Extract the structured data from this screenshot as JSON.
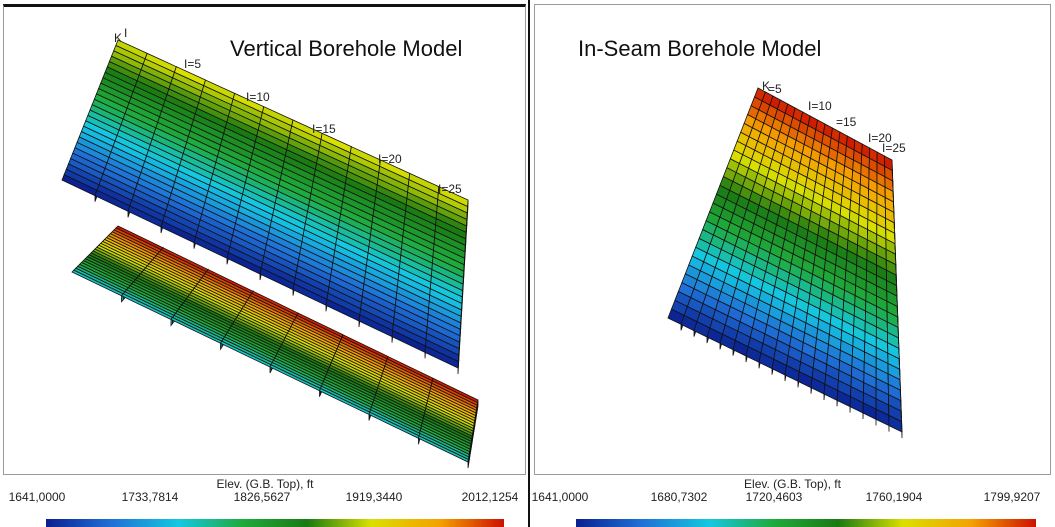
{
  "chart_data": [
    {
      "type": "heatmap",
      "title": "Vertical Borehole Model",
      "legend": {
        "title": "Elev. (G.B. Top), ft",
        "ticks": [
          "1641,0000",
          "1733,7814",
          "1826,5627",
          "1919,3440",
          "2012,1254"
        ],
        "min": 1641.0,
        "max": 2012.1254
      },
      "grid_labels": [
        "K",
        "I",
        "I=5",
        "I=10",
        "I=15",
        "I=20",
        "I=25"
      ],
      "colors": [
        "#0a1f8f",
        "#1f6fd6",
        "#14c8e0",
        "#1faa3c",
        "#1a7a12",
        "#d9e000",
        "#f5a000",
        "#cc1100"
      ]
    },
    {
      "type": "heatmap",
      "title": "In-Seam Borehole Model",
      "legend": {
        "title": "Elev. (G.B. Top), ft",
        "ticks": [
          "1641,0000",
          "1680,7302",
          "1720,4603",
          "1760,1904",
          "1799,9207"
        ],
        "min": 1641.0,
        "max": 1799.9207
      },
      "grid_labels": [
        "K",
        "=5",
        "I=10",
        "=15",
        "I=20",
        "I=25"
      ],
      "colors": [
        "#0a1f8f",
        "#1f6fd6",
        "#14c8e0",
        "#1faa3c",
        "#1a7a12",
        "#d9e000",
        "#f5a000",
        "#cc1100"
      ]
    }
  ]
}
